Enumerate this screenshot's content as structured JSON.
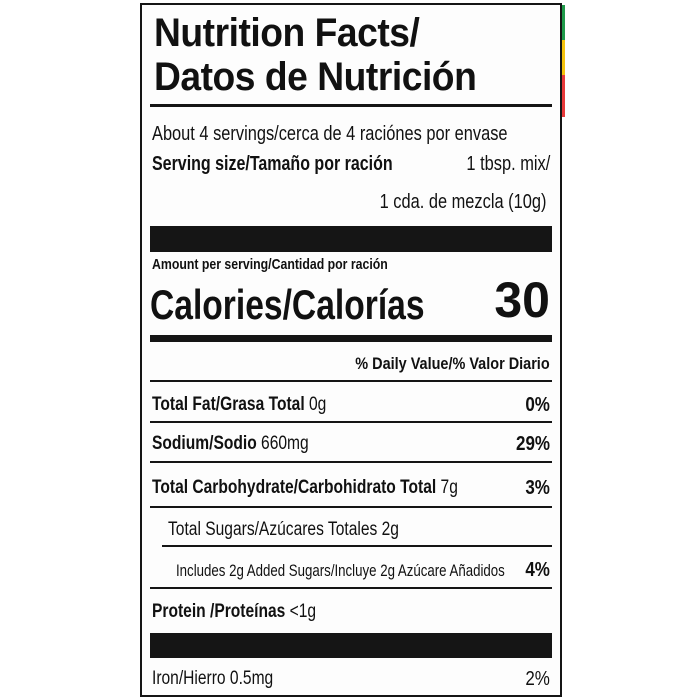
{
  "title": {
    "line1": "Nutrition Facts/",
    "line2": "Datos de Nutrición"
  },
  "servings": "About 4 servings/cerca de 4 raciónes por envase",
  "serving_size": {
    "label": "Serving size/Tamaño por ración",
    "value1": "1 tbsp. mix/",
    "value2": "1 cda. de mezcla (10g)"
  },
  "amount_per_serving": "Amount per serving/Cantidad por ración",
  "calories": {
    "label": "Calories/Calorías",
    "value": "30"
  },
  "daily_value_header": "% Daily Value/% Valor Diario",
  "nutrients": [
    {
      "label": "Total Fat/Grasa Total",
      "amount": "0g",
      "dv": "0%"
    },
    {
      "label": "Sodium/Sodio",
      "amount": "660mg",
      "dv": "29%"
    },
    {
      "label": "Total Carbohydrate/Carbohidrato Total",
      "amount": "7g",
      "dv": "3%"
    },
    {
      "label": "Total Sugars/Azúcares Totales 2g"
    },
    {
      "label": "Includes 2g Added Sugars/Incluye 2g Azúcare Añadidos",
      "dv": "4%"
    },
    {
      "label": "Protein /Proteínas",
      "amount": "<1g"
    }
  ],
  "iron": {
    "label": "Iron/Hierro 0.5mg",
    "dv": "2%"
  },
  "colors": {
    "ink": "#151515",
    "strip_green": "#1f9a4a",
    "strip_yellow": "#f4c20d",
    "strip_red": "#e8393a"
  }
}
